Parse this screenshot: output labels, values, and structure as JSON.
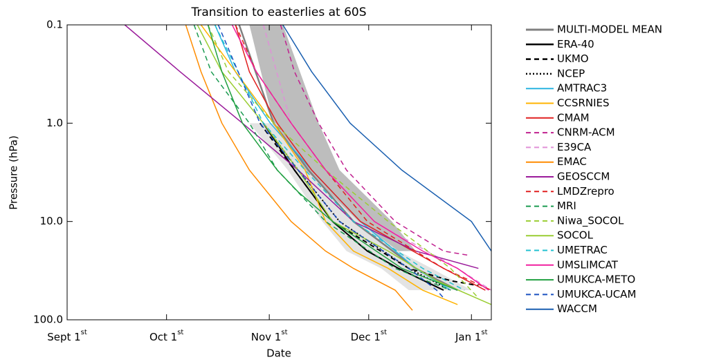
{
  "chart_data": {
    "type": "line",
    "title": "Transition to easterlies at 60S",
    "xlabel": "Date",
    "ylabel": "Pressure (hPa)",
    "xlim": [
      0,
      128
    ],
    "ylim": [
      100,
      0.1
    ],
    "ylog": true,
    "xticks": [
      {
        "value": 0,
        "label": "Sept 1st"
      },
      {
        "value": 30,
        "label": "Oct 1st"
      },
      {
        "value": 61,
        "label": "Nov 1st"
      },
      {
        "value": 91,
        "label": "Dec 1st"
      },
      {
        "value": 122,
        "label": "Jan 1st"
      }
    ],
    "yticks": [
      0.1,
      {
        "value": 1,
        "label": "1.0"
      },
      {
        "value": 10,
        "label": "10.0"
      },
      {
        "value": 100,
        "label": "100.0"
      }
    ],
    "bands": [
      {
        "color": "#bdbdbd",
        "values": [
          0.1,
          1,
          3,
          10,
          20
        ],
        "left": [
          55.0,
          62.3,
          69.7,
          78.0,
          88.5
        ],
        "right": [
          65.1,
          75.9,
          82.2,
          98.0,
          105.2
        ]
      },
      {
        "color": "#e3e3e3",
        "values": [
          1,
          3,
          10,
          20,
          30,
          50
        ],
        "left": [
          55.0,
          66.6,
          77.0,
          84.3,
          94.8,
          103.1
        ],
        "right": [
          63.0,
          72.0,
          88.0,
          100.0,
          110.0,
          122.0
        ]
      }
    ],
    "series": [
      {
        "name": "MULTI-MODEL MEAN",
        "color": "#808080",
        "dash": "solid",
        "width": 2.5,
        "x": [
          51.9,
          62.3,
          72.8,
          86.4,
          105.2,
          117.8
        ],
        "values": [
          0.1,
          1,
          3,
          10,
          30,
          50
        ]
      },
      {
        "name": "ERA-40",
        "color": "#000000",
        "dash": "solid",
        "width": 2,
        "x": [
          59.2,
          68.6,
          80.1,
          90.6,
          100.0,
          113.6
        ],
        "values": [
          1,
          3,
          10,
          20,
          30,
          50
        ]
      },
      {
        "name": "UKMO",
        "color": "#000000",
        "dash": "dashed",
        "width": 2,
        "x": [
          58.2,
          68.6,
          80.1,
          103.1,
          115.7,
          124.1
        ],
        "values": [
          1,
          3,
          10,
          30,
          40,
          45
        ]
      },
      {
        "name": "NCEP",
        "color": "#000000",
        "dash": "dotted",
        "width": 2,
        "x": [
          59.2,
          69.7,
          82.2,
          103.1,
          115.7
        ],
        "values": [
          1,
          3,
          10,
          30,
          50
        ]
      },
      {
        "name": "AMTRAC3",
        "color": "#2ab4e0",
        "dash": "solid",
        "width": 1.5,
        "x": [
          44.6,
          50.8,
          61.3,
          73.8,
          88.5,
          105.2,
          115.7
        ],
        "values": [
          0.1,
          0.3,
          1,
          3,
          10,
          30,
          50
        ]
      },
      {
        "name": "CCSRNIES",
        "color": "#ffb300",
        "dash": "solid",
        "width": 1.5,
        "x": [
          40.4,
          62.3,
          71.8,
          78.0,
          86.4,
          96.9,
          107.3,
          117.8
        ],
        "values": [
          0.1,
          1,
          3,
          10,
          20,
          30,
          50,
          70
        ]
      },
      {
        "name": "CMAM",
        "color": "#e02020",
        "dash": "solid",
        "width": 1.5,
        "x": [
          50.8,
          55.0,
          63.4,
          73.8,
          88.5,
          113.6,
          126.2
        ],
        "values": [
          0.1,
          0.3,
          1,
          3,
          10,
          30,
          50
        ]
      },
      {
        "name": "CNRM-ACM",
        "color": "#c0208f",
        "dash": "dashed",
        "width": 1.5,
        "x": [
          64.4,
          68.6,
          75.9,
          84.3,
          99.0,
          113.6,
          120.9
        ],
        "values": [
          0.1,
          0.3,
          1,
          3,
          10,
          20,
          22
        ]
      },
      {
        "name": "E39CA",
        "color": "#e090d8",
        "dash": "dashed",
        "width": 1.5,
        "x": [
          59.2,
          67.6,
          78.0,
          92.7,
          117.8,
          128.0
        ],
        "values": [
          0.1,
          1,
          3,
          10,
          30,
          50
        ]
      },
      {
        "name": "EMAC",
        "color": "#ff8c00",
        "dash": "solid",
        "width": 1.5,
        "x": [
          35.8,
          40.4,
          46.7,
          55.0,
          67.6,
          78.0,
          86.4,
          99.0,
          104.2
        ],
        "values": [
          0.1,
          0.3,
          1,
          3,
          10,
          20,
          30,
          50,
          80
        ]
      },
      {
        "name": "GEOSCCM",
        "color": "#9a1a9a",
        "dash": "solid",
        "width": 1.5,
        "x": [
          17.4,
          34.1,
          52.9,
          69.7,
          86.4,
          105.2,
          124.1
        ],
        "values": [
          0.1,
          0.3,
          1,
          3,
          10,
          20,
          30
        ]
      },
      {
        "name": "LMDZrepro",
        "color": "#e02020",
        "dash": "dashed",
        "width": 1.5,
        "x": [
          50.8,
          57.1,
          67.6,
          78.0,
          90.6,
          113.6,
          128.0
        ],
        "values": [
          0.1,
          0.3,
          1,
          3,
          10,
          30,
          50
        ]
      },
      {
        "name": "MRI",
        "color": "#1a9a50",
        "dash": "dashed",
        "width": 1.5,
        "x": [
          38.3,
          43.5,
          55.0,
          63.4,
          78.0,
          99.0,
          115.7
        ],
        "values": [
          0.1,
          0.3,
          1,
          3,
          10,
          30,
          50
        ]
      },
      {
        "name": "Niwa_SOCOL",
        "color": "#9acd32",
        "dash": "dashed",
        "width": 1.5,
        "x": [
          42.5,
          48.7,
          62.3,
          78.0,
          96.9,
          115.7,
          124.1
        ],
        "values": [
          0.1,
          0.3,
          1,
          3,
          10,
          30,
          60
        ]
      },
      {
        "name": "SOCOL",
        "color": "#9acd32",
        "dash": "solid",
        "width": 1.5,
        "x": [
          39.3,
          46.7,
          59.2,
          69.7,
          80.1,
          96.9,
          111.5,
          128.0
        ],
        "values": [
          0.1,
          0.3,
          1,
          3,
          10,
          20,
          40,
          70
        ]
      },
      {
        "name": "UMETRAC",
        "color": "#20c0d0",
        "dash": "dashed",
        "width": 1.5,
        "x": [
          44.6,
          59.2,
          71.8,
          86.4,
          107.3,
          119.9
        ],
        "values": [
          0.1,
          1,
          3,
          10,
          30,
          50
        ]
      },
      {
        "name": "UMSLIMCAT",
        "color": "#f0209f",
        "dash": "solid",
        "width": 1.5,
        "x": [
          49.8,
          57.1,
          67.6,
          78.0,
          92.7,
          107.3,
          117.8,
          127.2
        ],
        "values": [
          0.1,
          0.3,
          1,
          3,
          10,
          20,
          30,
          50
        ]
      },
      {
        "name": "UMUKCA-METO",
        "color": "#20a040",
        "dash": "solid",
        "width": 1.5,
        "x": [
          42.5,
          46.7,
          52.9,
          63.4,
          69.7,
          80.1,
          101.0,
          117.8
        ],
        "values": [
          0.1,
          0.3,
          1,
          3,
          5,
          10,
          30,
          50
        ]
      },
      {
        "name": "UMUKCA-UCAM",
        "color": "#1a50c0",
        "dash": "dashed",
        "width": 1.5,
        "x": [
          45.6,
          58.2,
          69.7,
          82.2,
          103.1,
          111.5,
          113.6
        ],
        "values": [
          0.1,
          1,
          3,
          10,
          30,
          50,
          60
        ]
      },
      {
        "name": "WACCM",
        "color": "#1a5fb0",
        "dash": "solid",
        "width": 1.5,
        "x": [
          65.1,
          73.8,
          85.4,
          101.0,
          122.0,
          128.0
        ],
        "values": [
          0.1,
          0.3,
          1,
          3,
          10,
          20
        ]
      }
    ]
  }
}
